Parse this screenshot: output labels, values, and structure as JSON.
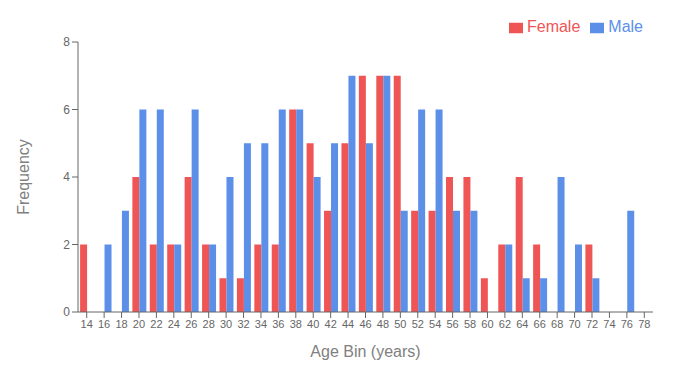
{
  "chart_data": {
    "type": "bar",
    "xlabel": "Age Bin (years)",
    "ylabel": "Frequency",
    "categories": [
      "14",
      "16",
      "18",
      "20",
      "22",
      "24",
      "26",
      "28",
      "30",
      "32",
      "34",
      "36",
      "38",
      "40",
      "42",
      "44",
      "46",
      "48",
      "50",
      "52",
      "54",
      "56",
      "58",
      "60",
      "62",
      "64",
      "66",
      "68",
      "70",
      "72",
      "74",
      "76",
      "78"
    ],
    "series": [
      {
        "name": "Female",
        "color": "#F05555",
        "values": [
          2,
          0,
          0,
          4,
          2,
          2,
          4,
          2,
          1,
          1,
          2,
          2,
          6,
          5,
          3,
          5,
          7,
          7,
          7,
          3,
          3,
          4,
          4,
          1,
          2,
          4,
          2,
          0,
          0,
          2,
          0,
          0,
          0
        ]
      },
      {
        "name": "Male",
        "color": "#5B8FE8",
        "values": [
          0,
          2,
          3,
          6,
          6,
          2,
          6,
          2,
          4,
          5,
          5,
          6,
          6,
          4,
          5,
          7,
          5,
          7,
          3,
          6,
          6,
          3,
          3,
          0,
          2,
          1,
          1,
          4,
          2,
          1,
          0,
          3,
          0
        ]
      }
    ],
    "ylim": [
      0,
      8
    ],
    "yticks": [
      0,
      2,
      4,
      6,
      8
    ],
    "legend": "upper right"
  }
}
